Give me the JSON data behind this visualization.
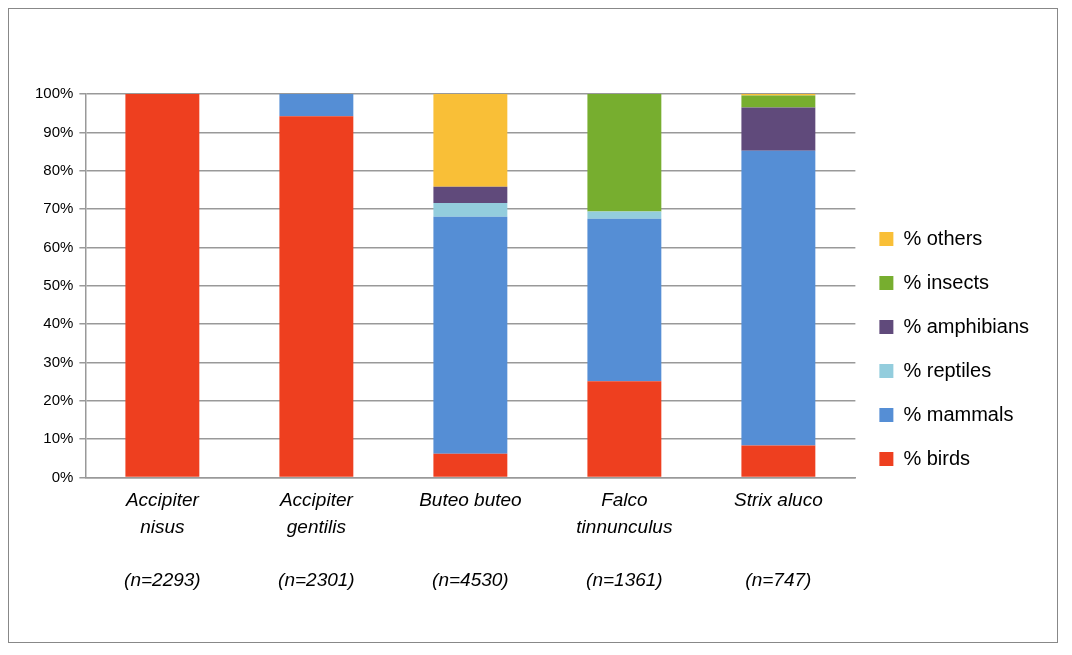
{
  "chart_data": {
    "type": "bar",
    "stacked": true,
    "categories": [
      "Accipiter\nnisus\n\n(n=2293)",
      "Accipiter\ngentilis\n\n(n=2301)",
      "Buteo buteo\n\n\n(n=4530)",
      "Falco\ntinnunculus\n\n(n=1361)",
      "Strix aluco\n\n\n(n=747)"
    ],
    "series": [
      {
        "name": "% birds",
        "color": "#ee3f1f",
        "values": [
          100,
          94.2,
          6.2,
          25.1,
          8.4
        ]
      },
      {
        "name": "% mammals",
        "color": "#558ed5",
        "values": [
          0,
          5.8,
          61.8,
          42.4,
          76.8
        ]
      },
      {
        "name": "% reptiles",
        "color": "#93cddd",
        "values": [
          0,
          0,
          3.6,
          1.9,
          0
        ]
      },
      {
        "name": "% amphibians",
        "color": "#604a7b",
        "values": [
          0,
          0,
          4.2,
          0,
          11.3
        ]
      },
      {
        "name": "% insects",
        "color": "#77ae2f",
        "values": [
          0,
          0,
          0,
          30.6,
          3.1
        ]
      },
      {
        "name": "% others",
        "color": "#f9bf37",
        "values": [
          0,
          0,
          24.2,
          0,
          0.4
        ]
      }
    ],
    "ylim": [
      0,
      100
    ],
    "yticks": [
      {
        "value": 0,
        "label": "0%"
      },
      {
        "value": 10,
        "label": "10%"
      },
      {
        "value": 20,
        "label": "20%"
      },
      {
        "value": 30,
        "label": "30%"
      },
      {
        "value": 40,
        "label": "40%"
      },
      {
        "value": 50,
        "label": "50%"
      },
      {
        "value": 60,
        "label": "60%"
      },
      {
        "value": 70,
        "label": "70%"
      },
      {
        "value": 80,
        "label": "80%"
      },
      {
        "value": 90,
        "label": "90%"
      },
      {
        "value": 100,
        "label": "100%"
      }
    ],
    "grid": "y",
    "legend": "right"
  }
}
